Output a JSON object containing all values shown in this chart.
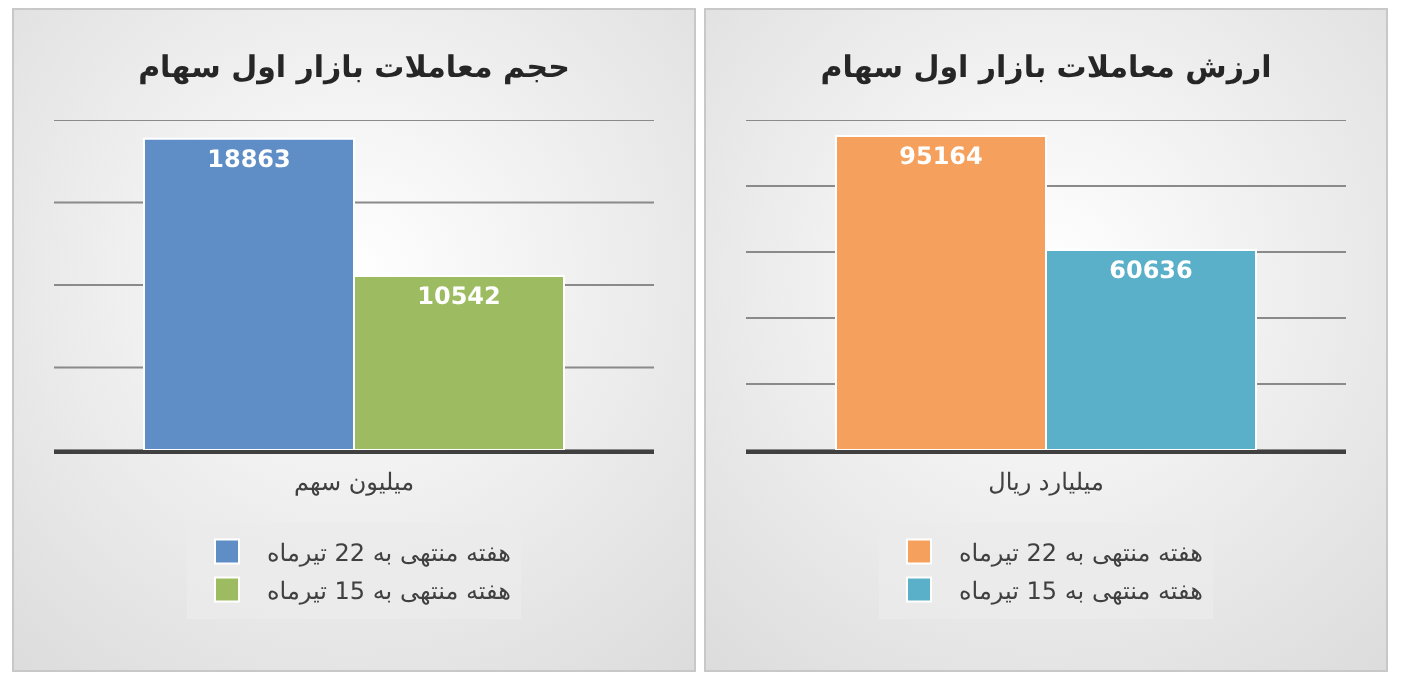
{
  "chart_data": [
    {
      "type": "bar",
      "title": "حجم معاملات بازار اول سهام",
      "categories": [
        null
      ],
      "xlabel": "میلیون سهم",
      "series": [
        {
          "name": "هفته منتهی به 22 تیرماه",
          "color": "#5f8dc5",
          "values": [
            18863
          ]
        },
        {
          "name": "هفته منتهی به 15 تیرماه",
          "color": "#9dbc61",
          "values": [
            10542
          ]
        }
      ],
      "ylim": [
        0,
        20000
      ],
      "yticks": [
        {
          "value": 0,
          "label": null
        },
        {
          "value": 5000,
          "label": null
        },
        {
          "value": 10000,
          "label": null
        },
        {
          "value": 15000,
          "label": null
        },
        {
          "value": 20000,
          "label": null
        }
      ],
      "tick_labels": "x",
      "grid": "y",
      "legend": "bottom",
      "data_labels": true
    },
    {
      "type": "bar",
      "title": "ارزش معاملات بازار اول سهام",
      "categories": [
        null
      ],
      "xlabel": "میلیارد ریال",
      "series": [
        {
          "name": "هفته منتهی به 22 تیرماه",
          "color": "#f5a05c",
          "values": [
            95164
          ]
        },
        {
          "name": "هفته منتهی به 15 تیرماه",
          "color": "#5bb0c9",
          "values": [
            60636
          ]
        }
      ],
      "ylim": [
        0,
        100000
      ],
      "yticks": [
        {
          "value": 0,
          "label": null
        },
        {
          "value": 20000,
          "label": null
        },
        {
          "value": 40000,
          "label": null
        },
        {
          "value": 60000,
          "label": null
        },
        {
          "value": 80000,
          "label": null
        },
        {
          "value": 100000,
          "label": null
        }
      ],
      "tick_labels": "x",
      "grid": "y",
      "legend": "bottom",
      "data_labels": true
    }
  ]
}
